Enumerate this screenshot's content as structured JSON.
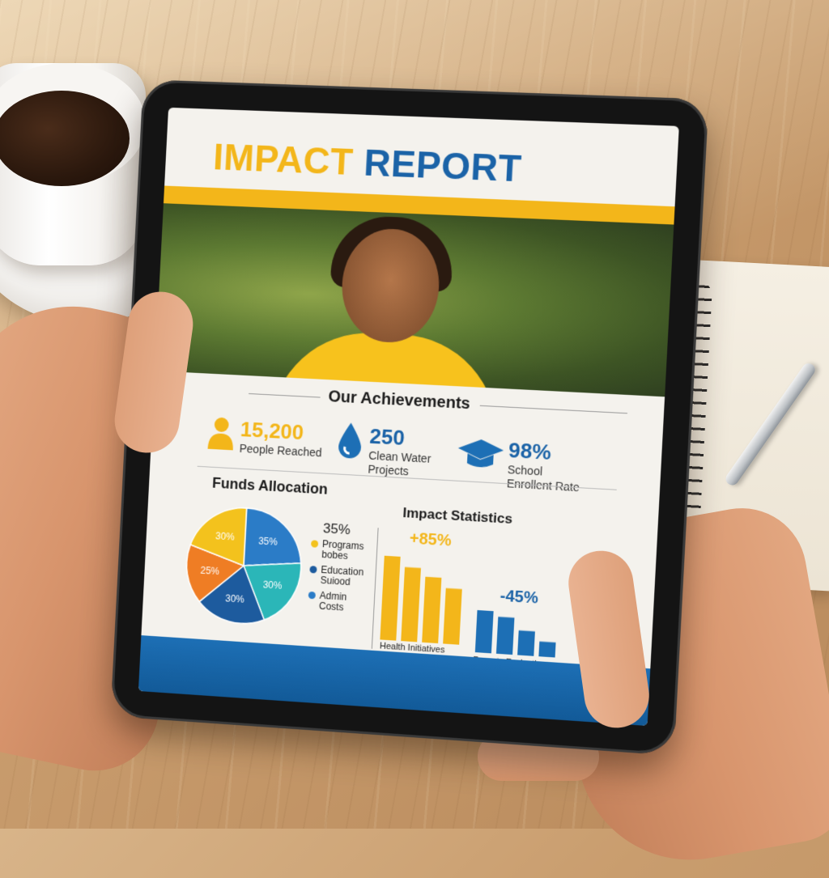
{
  "report": {
    "title_part1": "IMPACT",
    "title_part2": "REPORT",
    "achievements_heading": "Our Achievements",
    "stats": [
      {
        "value": "15,200",
        "label": "People Reached",
        "icon": "people-icon"
      },
      {
        "value": "250",
        "label_line1": "Clean Water",
        "label_line2": "Projects",
        "icon": "water-drop-icon"
      },
      {
        "value": "98%",
        "label_line1": "School",
        "label_line2": "Enrollent Rate",
        "icon": "graduation-cap-icon"
      }
    ],
    "funds_heading": "Funds Allocation",
    "impact_heading": "Impact Statistics",
    "pie": {
      "slices": [
        {
          "label": "35%",
          "value": 35,
          "color": "#2b7cc7"
        },
        {
          "label": "30%",
          "value": 30,
          "color": "#2bb6b8"
        },
        {
          "label": "30%",
          "value": 30,
          "color": "#1d5b9e"
        },
        {
          "label": "25%",
          "value": 25,
          "color": "#ef7d24"
        },
        {
          "label": "30%",
          "value": 30,
          "color": "#f3c21d"
        }
      ]
    },
    "legend": {
      "top_value": "35%",
      "items": [
        {
          "line1": "Programs",
          "line2": "bobes",
          "color": "#f3c21d"
        },
        {
          "line1": "Education",
          "line2": "Suiood",
          "color": "#1d5b9e"
        },
        {
          "line1": "Admin",
          "line2": "Costs",
          "color": "#2b7cc7"
        }
      ]
    },
    "bars": {
      "health": {
        "label": "Health Initiatives",
        "change": "+85%",
        "values": [
          100,
          88,
          78,
          66
        ],
        "color": "#f3b61a"
      },
      "poverty": {
        "label": "Poverty Reduction",
        "change": "-45%",
        "values": [
          48,
          42,
          28,
          17
        ],
        "color": "#1d6fb5"
      }
    }
  }
}
